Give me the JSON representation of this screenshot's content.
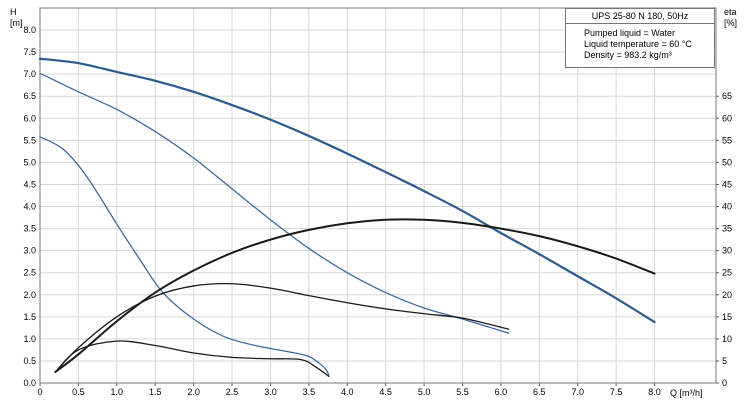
{
  "chart_data": {
    "type": "line",
    "info": {
      "title": "UPS 25-80 N 180, 50Hz",
      "lines": [
        "Pumped liquid = Water",
        "Liquid temperature = 60 °C",
        "Density = 983.2 kg/m³"
      ]
    },
    "axes": {
      "y_left": {
        "label_1": "H",
        "label_2": "[m]",
        "ticks": [
          "0.0",
          "0.5",
          "1.0",
          "1.5",
          "2.0",
          "2.5",
          "3.0",
          "3.5",
          "4.0",
          "4.5",
          "5.0",
          "5.5",
          "6.0",
          "6.5",
          "7.0",
          "7.5",
          "8.0"
        ],
        "range": [
          0,
          8.5
        ]
      },
      "y_right": {
        "label_1": "eta",
        "label_2": "[%]",
        "ticks": [
          "0",
          "5",
          "10",
          "15",
          "20",
          "25",
          "30",
          "35",
          "40",
          "45",
          "50",
          "55",
          "60",
          "65"
        ],
        "range": [
          0,
          85
        ]
      },
      "x": {
        "label": "Q [m³/h]",
        "ticks": [
          "0",
          "0.5",
          "1.0",
          "1.5",
          "2.0",
          "2.5",
          "3.0",
          "3.5",
          "4.0",
          "4.5",
          "5.0",
          "5.5",
          "6.0",
          "6.5",
          "7.0",
          "7.5",
          "8.0"
        ],
        "range": [
          0,
          8.8
        ]
      }
    },
    "grid": true,
    "series": [
      {
        "axis": "H",
        "color": "#2b5a8c",
        "width": 2.2,
        "points": [
          [
            0,
            7.35
          ],
          [
            0.5,
            7.25
          ],
          [
            1,
            7.05
          ],
          [
            1.5,
            6.85
          ],
          [
            2,
            6.6
          ],
          [
            2.5,
            6.3
          ],
          [
            3,
            5.97
          ],
          [
            3.5,
            5.6
          ],
          [
            4,
            5.2
          ],
          [
            4.5,
            4.78
          ],
          [
            5,
            4.35
          ],
          [
            5.5,
            3.9
          ],
          [
            6,
            3.4
          ],
          [
            6.5,
            2.92
          ],
          [
            7,
            2.42
          ],
          [
            7.5,
            1.92
          ],
          [
            8,
            1.38
          ]
        ]
      },
      {
        "axis": "H",
        "color": "#3d6aa0",
        "width": 1.3,
        "points": [
          [
            0,
            7.02
          ],
          [
            0.5,
            6.6
          ],
          [
            1,
            6.2
          ],
          [
            1.5,
            5.7
          ],
          [
            2,
            5.1
          ],
          [
            2.5,
            4.4
          ],
          [
            3,
            3.7
          ],
          [
            3.5,
            3.05
          ],
          [
            4,
            2.5
          ],
          [
            4.5,
            2.05
          ],
          [
            5,
            1.7
          ],
          [
            5.5,
            1.45
          ],
          [
            6.1,
            1.13
          ]
        ]
      },
      {
        "axis": "H",
        "color": "#3d6aa0",
        "width": 1.3,
        "points": [
          [
            0,
            5.58
          ],
          [
            0.3,
            5.3
          ],
          [
            0.6,
            4.7
          ],
          [
            1,
            3.6
          ],
          [
            1.3,
            2.8
          ],
          [
            1.6,
            2.05
          ],
          [
            2,
            1.45
          ],
          [
            2.4,
            1.05
          ],
          [
            2.8,
            0.85
          ],
          [
            3.2,
            0.72
          ],
          [
            3.5,
            0.6
          ],
          [
            3.7,
            0.35
          ],
          [
            3.76,
            0.18
          ]
        ]
      },
      {
        "axis": "eta",
        "color": "#1a1a1a",
        "width": 2.0,
        "points": [
          [
            0.2,
            2.5
          ],
          [
            0.5,
            6.5
          ],
          [
            1,
            14
          ],
          [
            1.5,
            20.5
          ],
          [
            2,
            25.5
          ],
          [
            2.5,
            29.5
          ],
          [
            3,
            32.5
          ],
          [
            3.5,
            34.7
          ],
          [
            4,
            36.2
          ],
          [
            4.5,
            37
          ],
          [
            5,
            37
          ],
          [
            5.5,
            36.3
          ],
          [
            6,
            35
          ],
          [
            6.5,
            33.3
          ],
          [
            7,
            31
          ],
          [
            7.5,
            28.2
          ],
          [
            8,
            24.8
          ]
        ]
      },
      {
        "axis": "eta",
        "color": "#1a1a1a",
        "width": 1.3,
        "points": [
          [
            0.2,
            2.5
          ],
          [
            0.5,
            8
          ],
          [
            1,
            15
          ],
          [
            1.5,
            19.7
          ],
          [
            2,
            22
          ],
          [
            2.5,
            22.5
          ],
          [
            3,
            21.5
          ],
          [
            3.5,
            19.8
          ],
          [
            4,
            18.2
          ],
          [
            4.5,
            16.8
          ],
          [
            5,
            15.7
          ],
          [
            5.5,
            14.7
          ],
          [
            6.1,
            12.2
          ]
        ]
      },
      {
        "axis": "eta",
        "color": "#1a1a1a",
        "width": 1.3,
        "points": [
          [
            0.2,
            2.5
          ],
          [
            0.5,
            7.5
          ],
          [
            1,
            9.5
          ],
          [
            1.5,
            8.5
          ],
          [
            2,
            6.8
          ],
          [
            2.5,
            5.8
          ],
          [
            3,
            5.5
          ],
          [
            3.4,
            5.3
          ],
          [
            3.6,
            3.5
          ],
          [
            3.76,
            1.5
          ]
        ]
      }
    ]
  }
}
